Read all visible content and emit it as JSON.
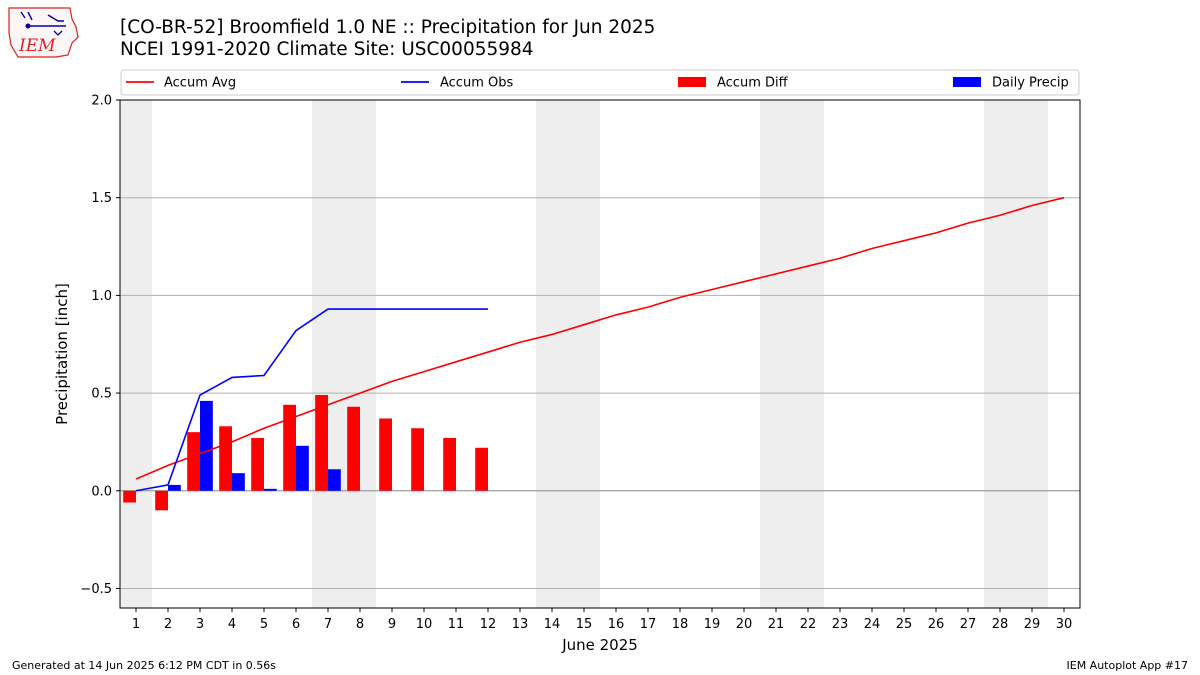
{
  "header": {
    "logo_text": "IEM",
    "title_line1": "[CO-BR-52] Broomfield 1.0 NE :: Precipitation for Jun 2025",
    "title_line2": "NCEI 1991-2020 Climate Site: USC00055984"
  },
  "footer": {
    "generated": "Generated at 14 Jun 2025 6:12 PM CDT in 0.56s",
    "app": "IEM Autoplot App #17"
  },
  "colors": {
    "accum_avg": "#ff0000",
    "accum_obs": "#0000ff",
    "accum_diff": "#ff0000",
    "daily_precip": "#0000ff",
    "weekend_shade": "#eeeeee",
    "grid": "#b0b0b0"
  },
  "chart_data": {
    "type": "bar",
    "xlabel": "June 2025",
    "ylabel": "Precipitation [inch]",
    "xlim": [
      0.5,
      30.5
    ],
    "ylim": [
      -0.6,
      2.0
    ],
    "yticks": [
      -0.5,
      0.0,
      0.5,
      1.0,
      1.5,
      2.0
    ],
    "ytick_labels": [
      "−0.5",
      "0.0",
      "0.5",
      "1.0",
      "1.5",
      "2.0"
    ],
    "days": [
      1,
      2,
      3,
      4,
      5,
      6,
      7,
      8,
      9,
      10,
      11,
      12,
      13,
      14,
      15,
      16,
      17,
      18,
      19,
      20,
      21,
      22,
      23,
      24,
      25,
      26,
      27,
      28,
      29,
      30
    ],
    "weekend_days": [
      1,
      7,
      8,
      14,
      15,
      21,
      22,
      28,
      29
    ],
    "grid": "horizontal",
    "legend": {
      "placement": "top",
      "entries": [
        {
          "label": "Accum Avg",
          "kind": "line",
          "color": "#ff0000"
        },
        {
          "label": "Accum Obs",
          "kind": "line",
          "color": "#0000ff"
        },
        {
          "label": "Accum Diff",
          "kind": "bar",
          "color": "#ff0000"
        },
        {
          "label": "Daily Precip",
          "kind": "bar",
          "color": "#0000ff"
        }
      ]
    },
    "series": [
      {
        "name": "Accum Avg",
        "type": "line",
        "x": [
          1,
          2,
          3,
          4,
          5,
          6,
          7,
          8,
          9,
          10,
          11,
          12,
          13,
          14,
          15,
          16,
          17,
          18,
          19,
          20,
          21,
          22,
          23,
          24,
          25,
          26,
          27,
          28,
          29,
          30
        ],
        "values": [
          0.06,
          0.13,
          0.19,
          0.25,
          0.32,
          0.38,
          0.44,
          0.5,
          0.56,
          0.61,
          0.66,
          0.71,
          0.76,
          0.8,
          0.85,
          0.9,
          0.94,
          0.99,
          1.03,
          1.07,
          1.11,
          1.15,
          1.19,
          1.24,
          1.28,
          1.32,
          1.37,
          1.41,
          1.46,
          1.5
        ]
      },
      {
        "name": "Accum Obs",
        "type": "line",
        "x": [
          1,
          2,
          3,
          4,
          5,
          6,
          7,
          8,
          9,
          10,
          11,
          12
        ],
        "values": [
          0.0,
          0.03,
          0.49,
          0.58,
          0.59,
          0.82,
          0.93,
          0.93,
          0.93,
          0.93,
          0.93,
          0.93
        ]
      },
      {
        "name": "Accum Diff",
        "type": "bar",
        "x": [
          1,
          2,
          3,
          4,
          5,
          6,
          7,
          8,
          9,
          10,
          11,
          12
        ],
        "values": [
          -0.06,
          -0.1,
          0.3,
          0.33,
          0.27,
          0.44,
          0.49,
          0.43,
          0.37,
          0.32,
          0.27,
          0.22
        ]
      },
      {
        "name": "Daily Precip",
        "type": "bar",
        "x": [
          1,
          2,
          3,
          4,
          5,
          6,
          7,
          8,
          9,
          10,
          11,
          12
        ],
        "values": [
          0.0,
          0.03,
          0.46,
          0.09,
          0.01,
          0.23,
          0.11,
          0.0,
          0.0,
          0.0,
          0.0,
          0.0
        ]
      }
    ]
  }
}
